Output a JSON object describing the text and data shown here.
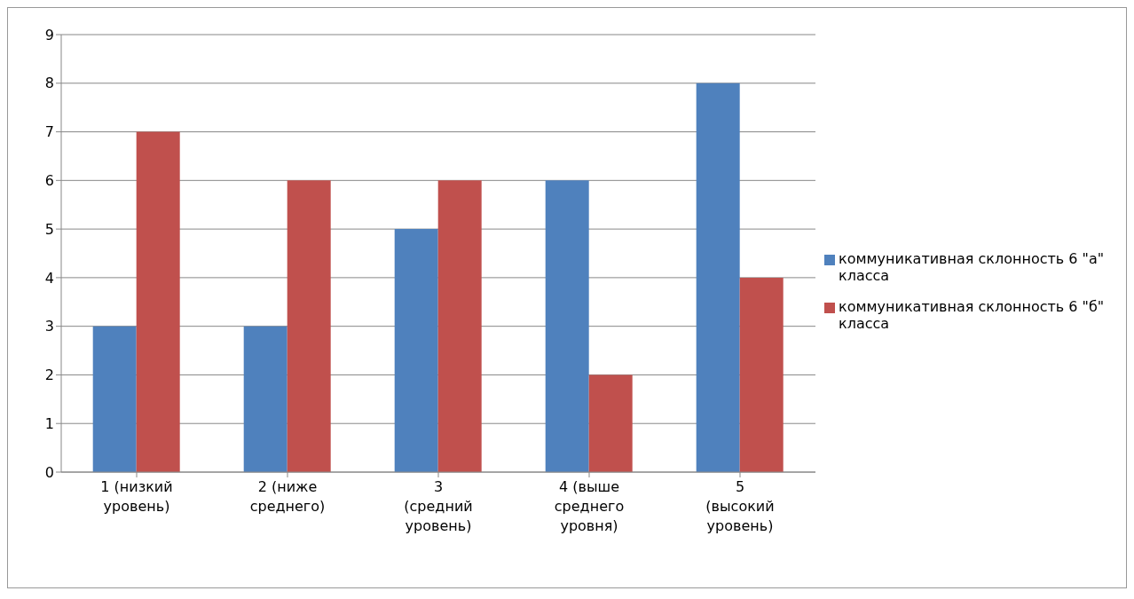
{
  "chart_data": {
    "type": "bar",
    "categories": [
      "1 (низкий уровень)",
      "2 (ниже среднего)",
      "3 (средний уровень)",
      "4   (выше среднего уровня)",
      "5 (высокий уровень)"
    ],
    "series": [
      {
        "name": "коммуникативная склонность 6 \"а\" класса",
        "color": "#4f81bd",
        "values": [
          3,
          3,
          5,
          6,
          8
        ]
      },
      {
        "name": "коммуникативная склонность 6 \"б\" класса",
        "color": "#c0504d",
        "values": [
          7,
          6,
          6,
          2,
          4
        ]
      }
    ],
    "ylim": [
      0,
      9
    ],
    "yticks": [
      0,
      1,
      2,
      3,
      4,
      5,
      6,
      7,
      8,
      9
    ],
    "grid": "y",
    "legend": "right"
  }
}
